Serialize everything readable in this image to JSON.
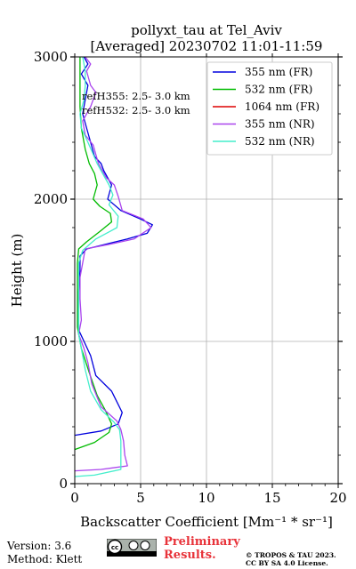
{
  "chart_data": {
    "type": "line",
    "title": "pollyxt_tau at Tel_Aviv",
    "subtitle": "[Averaged] 20230702 11:01-11:59",
    "xlabel": "Backscatter Coefficient [Mm⁻¹ * sr⁻¹]",
    "ylabel": "Height (m)",
    "xlim": [
      0,
      20
    ],
    "ylim": [
      0,
      3000
    ],
    "xticks": [
      0,
      5,
      10,
      15,
      20
    ],
    "yticks": [
      0,
      1000,
      2000,
      3000
    ],
    "grid": true,
    "legend_position": "top-right",
    "annotations": [
      "refH355:  2.5- 3.0 km",
      "refH532:  2.5- 3.0 km"
    ],
    "series": [
      {
        "name": "355 nm (FR)",
        "color": "#0000dd",
        "points": [
          [
            0.0,
            340
          ],
          [
            2.0,
            370
          ],
          [
            3.3,
            420
          ],
          [
            3.6,
            500
          ],
          [
            2.8,
            650
          ],
          [
            1.6,
            760
          ],
          [
            1.2,
            900
          ],
          [
            0.7,
            1000
          ],
          [
            0.3,
            1080
          ],
          [
            0.3,
            1200
          ],
          [
            0.3,
            1350
          ],
          [
            0.4,
            1500
          ],
          [
            0.4,
            1600
          ],
          [
            0.9,
            1650
          ],
          [
            2.2,
            1680
          ],
          [
            4.0,
            1720
          ],
          [
            5.5,
            1760
          ],
          [
            5.9,
            1820
          ],
          [
            5.0,
            1860
          ],
          [
            3.5,
            1920
          ],
          [
            2.5,
            2000
          ],
          [
            2.8,
            2100
          ],
          [
            2.2,
            2200
          ],
          [
            2.0,
            2250
          ],
          [
            1.5,
            2300
          ],
          [
            1.2,
            2400
          ],
          [
            0.9,
            2500
          ],
          [
            0.6,
            2600
          ],
          [
            0.8,
            2700
          ],
          [
            1.0,
            2800
          ],
          [
            0.5,
            2880
          ],
          [
            1.0,
            2950
          ],
          [
            0.7,
            3000
          ]
        ]
      },
      {
        "name": "532 nm (FR)",
        "color": "#00bb00",
        "points": [
          [
            0.0,
            240
          ],
          [
            1.5,
            290
          ],
          [
            2.6,
            360
          ],
          [
            2.8,
            420
          ],
          [
            2.3,
            520
          ],
          [
            1.7,
            620
          ],
          [
            1.1,
            780
          ],
          [
            0.5,
            950
          ],
          [
            0.2,
            1100
          ],
          [
            0.2,
            1250
          ],
          [
            0.2,
            1400
          ],
          [
            0.2,
            1550
          ],
          [
            0.3,
            1650
          ],
          [
            0.9,
            1700
          ],
          [
            2.0,
            1780
          ],
          [
            2.8,
            1840
          ],
          [
            2.7,
            1900
          ],
          [
            1.9,
            1950
          ],
          [
            1.4,
            2000
          ],
          [
            1.7,
            2100
          ],
          [
            1.5,
            2180
          ],
          [
            1.1,
            2250
          ],
          [
            0.8,
            2350
          ],
          [
            0.5,
            2500
          ],
          [
            0.4,
            2650
          ],
          [
            0.4,
            2800
          ],
          [
            0.4,
            3000
          ]
        ]
      },
      {
        "name": "1064 nm (FR)",
        "color": "#dd0000",
        "points": []
      },
      {
        "name": "355 nm (NR)",
        "color": "#aa44ee",
        "points": [
          [
            0.0,
            90
          ],
          [
            2.0,
            100
          ],
          [
            4.0,
            125
          ],
          [
            3.8,
            200
          ],
          [
            3.7,
            300
          ],
          [
            3.5,
            380
          ],
          [
            3.2,
            440
          ],
          [
            2.0,
            540
          ],
          [
            1.3,
            700
          ],
          [
            1.0,
            850
          ],
          [
            0.7,
            950
          ],
          [
            0.3,
            1050
          ],
          [
            0.5,
            1150
          ],
          [
            0.4,
            1300
          ],
          [
            0.4,
            1450
          ],
          [
            0.8,
            1650
          ],
          [
            2.5,
            1680
          ],
          [
            4.5,
            1720
          ],
          [
            5.8,
            1800
          ],
          [
            5.2,
            1860
          ],
          [
            3.6,
            1920
          ],
          [
            3.3,
            2020
          ],
          [
            3.0,
            2100
          ],
          [
            2.4,
            2150
          ],
          [
            1.8,
            2250
          ],
          [
            1.4,
            2380
          ],
          [
            0.8,
            2450
          ],
          [
            0.6,
            2550
          ],
          [
            1.2,
            2650
          ],
          [
            1.6,
            2750
          ],
          [
            1.2,
            2800
          ],
          [
            0.9,
            2900
          ],
          [
            1.2,
            2950
          ],
          [
            0.8,
            3000
          ]
        ]
      },
      {
        "name": "532 nm (NR)",
        "color": "#44eecc",
        "points": [
          [
            0.0,
            50
          ],
          [
            1.5,
            60
          ],
          [
            3.5,
            100
          ],
          [
            3.5,
            200
          ],
          [
            3.5,
            300
          ],
          [
            3.4,
            380
          ],
          [
            3.0,
            430
          ],
          [
            2.0,
            520
          ],
          [
            1.2,
            650
          ],
          [
            0.8,
            800
          ],
          [
            0.5,
            950
          ],
          [
            0.3,
            1050
          ],
          [
            0.3,
            1200
          ],
          [
            0.3,
            1400
          ],
          [
            0.3,
            1550
          ],
          [
            0.6,
            1640
          ],
          [
            1.6,
            1720
          ],
          [
            3.2,
            1800
          ],
          [
            3.3,
            1880
          ],
          [
            2.6,
            1960
          ],
          [
            2.9,
            2030
          ],
          [
            2.6,
            2100
          ],
          [
            2.3,
            2150
          ],
          [
            1.7,
            2250
          ],
          [
            1.0,
            2400
          ],
          [
            0.5,
            2500
          ],
          [
            0.4,
            2600
          ],
          [
            0.7,
            2700
          ],
          [
            0.8,
            2800
          ],
          [
            0.8,
            2900
          ],
          [
            0.6,
            3000
          ]
        ]
      }
    ]
  },
  "footer": {
    "version": "Version: 3.6",
    "method": "Method: Klett",
    "preliminary_line1": "Preliminary",
    "preliminary_line2": "Results.",
    "copyright_line1": "© TROPOS & TAU 2023.",
    "copyright_line2": "CC BY SA 4.0 License."
  }
}
